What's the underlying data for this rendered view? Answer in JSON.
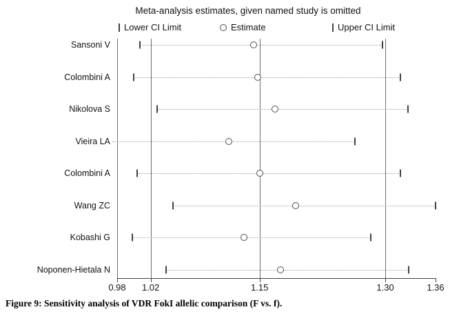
{
  "title": "Meta-analysis estimates, given named study is omitted",
  "legend": {
    "lower_label": "Lower CI Limit",
    "estimate_label": "Estimate",
    "upper_label": "Upper CI Limit"
  },
  "caption": "Figure 9: Sensitivity analysis of VDR FokI allelic comparison (F vs. f).",
  "colors": {
    "reference_line": "#6e6e6e",
    "axis": "#404040",
    "dotted_ci": "#9c9c9c",
    "marker_stroke": "#4d4d4d"
  },
  "chart_data": {
    "type": "scatter",
    "subtype": "sensitivity-forest",
    "title": "Meta-analysis estimates, given named study is omitted",
    "xlabel": "",
    "ylabel": "",
    "xlim": [
      0.98,
      1.36
    ],
    "grid": false,
    "legend_position": "top",
    "x_ticks": [
      {
        "label": "0.98",
        "value": 0.98
      },
      {
        "label": "1.02",
        "value": 1.02
      },
      {
        "label": "1.15",
        "value": 1.15
      },
      {
        "label": "1.30",
        "value": 1.3
      },
      {
        "label": "1.36",
        "value": 1.36
      }
    ],
    "reference_lines": {
      "lower_ci_limit": 1.02,
      "estimate": 1.15,
      "upper_ci_limit": 1.3
    },
    "studies": [
      {
        "label": "Sansoni V",
        "lower": 1.007,
        "estimate": 1.143,
        "upper": 1.297,
        "lower_clipped": false
      },
      {
        "label": "Colombini A",
        "lower": 1.0,
        "estimate": 1.148,
        "upper": 1.318,
        "lower_clipped": false
      },
      {
        "label": "Nikolova S",
        "lower": 1.028,
        "estimate": 1.168,
        "upper": 1.327,
        "lower_clipped": false
      },
      {
        "label": "Vieira LA",
        "lower": 0.975,
        "estimate": 1.113,
        "upper": 1.264,
        "lower_clipped": true
      },
      {
        "label": "Colombini A",
        "lower": 1.004,
        "estimate": 1.15,
        "upper": 1.318,
        "lower_clipped": false
      },
      {
        "label": "Wang ZC",
        "lower": 1.047,
        "estimate": 1.193,
        "upper": 1.36,
        "lower_clipped": false
      },
      {
        "label": "Kobashi G",
        "lower": 0.998,
        "estimate": 1.131,
        "upper": 1.283,
        "lower_clipped": false
      },
      {
        "label": "Noponen-Hietala N",
        "lower": 1.038,
        "estimate": 1.175,
        "upper": 1.328,
        "lower_clipped": false
      }
    ]
  }
}
